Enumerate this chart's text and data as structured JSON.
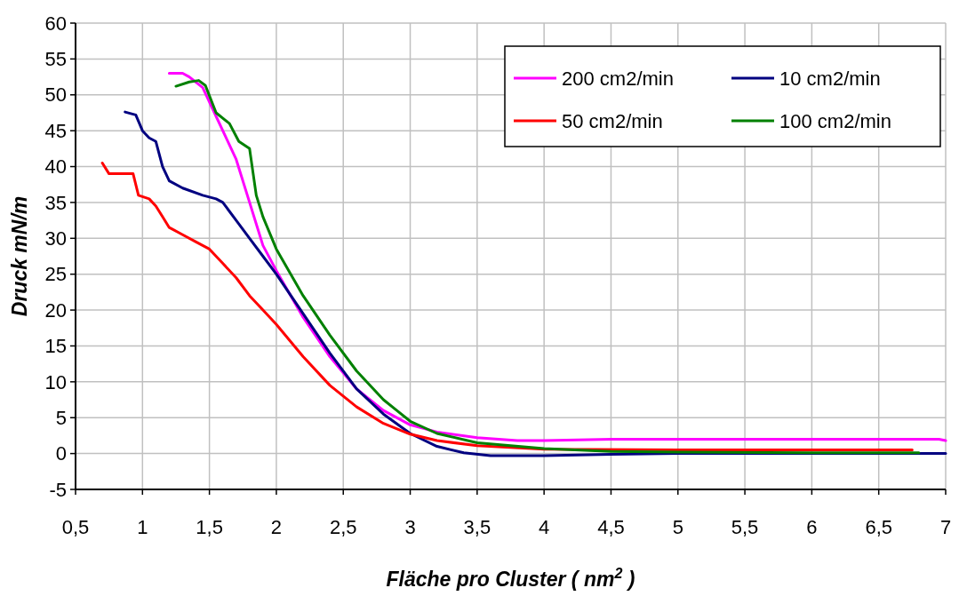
{
  "chart_data": {
    "type": "line",
    "xlabel": "Fläche pro Cluster ( nm$^{2}$ )",
    "ylabel": "Druck mN/m",
    "xlim": [
      0.5,
      7
    ],
    "ylim": [
      -5,
      60
    ],
    "xticks": [
      {
        "value": 0.5,
        "label": "0,5"
      },
      1,
      {
        "value": 1.5,
        "label": "1,5"
      },
      2,
      {
        "value": 2.5,
        "label": "2,5"
      },
      3,
      {
        "value": 3.5,
        "label": "3,5"
      },
      4,
      {
        "value": 4.5,
        "label": "4,5"
      },
      5,
      {
        "value": 5.5,
        "label": "5,5"
      },
      6,
      {
        "value": 6.5,
        "label": "6,5"
      },
      7
    ],
    "yticks": [
      -5,
      0,
      5,
      10,
      15,
      20,
      25,
      30,
      35,
      40,
      45,
      50,
      55,
      60
    ],
    "grid": true,
    "legend": "top right",
    "marker": "none",
    "line_style": "solid",
    "series": [
      {
        "name": "200 cm2/min",
        "color": "#ff00ff",
        "x": [
          1.2,
          1.3,
          1.35,
          1.45,
          1.55,
          1.7,
          1.8,
          1.9,
          2.0,
          2.2,
          2.4,
          2.6,
          2.8,
          3.0,
          3.2,
          3.5,
          3.8,
          4.0,
          4.5,
          5,
          6,
          6.8,
          6.95,
          7
        ],
        "values": [
          53,
          53,
          52.5,
          51,
          47,
          41,
          35,
          29,
          25.5,
          19,
          13.5,
          9,
          6,
          4,
          3,
          2.2,
          1.8,
          1.8,
          2,
          2,
          2,
          2,
          2,
          1.8
        ]
      },
      {
        "name": "10 cm2/min",
        "color": "#000080",
        "x": [
          0.87,
          0.95,
          1.0,
          1.05,
          1.1,
          1.15,
          1.2,
          1.3,
          1.45,
          1.55,
          1.6,
          1.7,
          1.8,
          1.9,
          2.0,
          2.2,
          2.4,
          2.6,
          2.8,
          3.0,
          3.2,
          3.4,
          3.6,
          4.0,
          4.5,
          5,
          6,
          7
        ],
        "values": [
          47.6,
          47.2,
          45,
          44,
          43.5,
          40,
          38,
          37,
          36,
          35.5,
          35,
          32.5,
          30,
          27.5,
          25,
          19.5,
          14,
          9,
          5.5,
          2.8,
          1,
          0.1,
          -0.3,
          -0.3,
          -0.1,
          0,
          0,
          0
        ]
      },
      {
        "name": "50 cm2/min",
        "color": "#ff0000",
        "x": [
          0.7,
          0.75,
          0.85,
          0.93,
          0.97,
          1.05,
          1.1,
          1.15,
          1.2,
          1.3,
          1.4,
          1.5,
          1.6,
          1.7,
          1.8,
          1.9,
          2.0,
          2.2,
          2.4,
          2.6,
          2.8,
          3.0,
          3.2,
          3.5,
          4.0,
          5,
          6,
          6.75
        ],
        "values": [
          40.5,
          39,
          39,
          39,
          36,
          35.5,
          34.5,
          33,
          31.5,
          30.5,
          29.5,
          28.5,
          26.5,
          24.5,
          22,
          20,
          18,
          13.5,
          9.5,
          6.5,
          4.2,
          2.7,
          1.8,
          1.1,
          0.6,
          0.5,
          0.5,
          0.5
        ]
      },
      {
        "name": "100 cm2/min",
        "color": "#008000",
        "x": [
          1.25,
          1.35,
          1.42,
          1.47,
          1.55,
          1.65,
          1.72,
          1.8,
          1.85,
          1.9,
          2.0,
          2.2,
          2.4,
          2.6,
          2.8,
          2.9,
          3.0,
          3.2,
          3.5,
          4.0,
          4.5,
          5,
          6,
          6.8
        ],
        "values": [
          51.2,
          51.8,
          52,
          51.3,
          47.5,
          46,
          43.5,
          42.5,
          36,
          33,
          28.5,
          22,
          16.5,
          11.5,
          7.5,
          6,
          4.5,
          2.8,
          1.5,
          0.7,
          0.3,
          0.2,
          0.1,
          0.1
        ]
      }
    ]
  }
}
